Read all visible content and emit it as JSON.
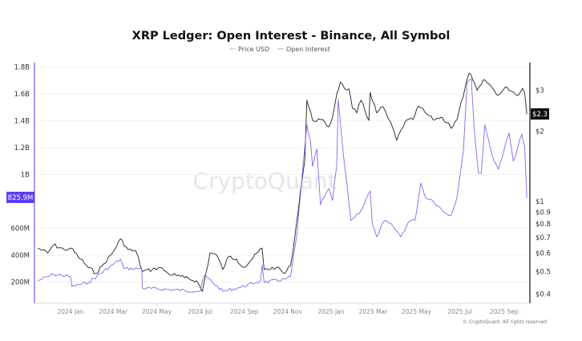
{
  "chart_data": {
    "type": "line",
    "title": "XRP Ledger: Open Interest - Binance, All Symbol",
    "watermark": "CryptoQuant",
    "footer": "© CryptoQuant. All rights reserved",
    "legend_placement": "top-center",
    "grid": true,
    "colors": {
      "price": "#222222",
      "open_interest": "#7b6cf0",
      "oi_label_bg": "#5b3ef5",
      "price_label_bg": "#111111"
    },
    "x_ticks": [
      "2024 Jan",
      "2024 Mar",
      "2024 May",
      "2024 Jul",
      "2024 Sep",
      "2024 Nov",
      "2025 Jan",
      "2025 Mar",
      "2025 May",
      "2025 Jul",
      "2025 Sep"
    ],
    "left_axis": {
      "ticks": [
        "200M",
        "400M",
        "600M",
        "1B",
        "1.2B",
        "1.4B",
        "1.6B",
        "1.8B"
      ],
      "tick_values": [
        200,
        400,
        600,
        1000,
        1200,
        1400,
        1600,
        1800
      ],
      "unit": "M",
      "current_label": "825.9M"
    },
    "right_axis": {
      "scale": "log",
      "ticks": [
        "$0.4",
        "$0.5",
        "$0.6",
        "$0.7",
        "$0.8",
        "$0.9",
        "$1",
        "$2",
        "$3"
      ],
      "tick_values": [
        0.4,
        0.5,
        0.6,
        0.7,
        0.8,
        0.9,
        1,
        2,
        3
      ],
      "current_label": "$2.3"
    },
    "series": [
      {
        "name": "Price USD",
        "axis": "right",
        "points": [
          [
            "2023-11-16",
            0.63
          ],
          [
            "2023-11-30",
            0.6
          ],
          [
            "2023-12-08",
            0.65
          ],
          [
            "2023-12-23",
            0.62
          ],
          [
            "2024-01-01",
            0.63
          ],
          [
            "2024-01-15",
            0.565
          ],
          [
            "2024-01-26",
            0.52
          ],
          [
            "2024-02-06",
            0.49
          ],
          [
            "2024-02-17",
            0.54
          ],
          [
            "2024-02-29",
            0.6
          ],
          [
            "2024-03-11",
            0.69
          ],
          [
            "2024-03-22",
            0.62
          ],
          [
            "2024-04-02",
            0.61
          ],
          [
            "2024-04-11",
            0.5
          ],
          [
            "2024-04-25",
            0.51
          ],
          [
            "2024-05-06",
            0.52
          ],
          [
            "2024-05-17",
            0.49
          ],
          [
            "2024-05-29",
            0.48
          ],
          [
            "2024-06-09",
            0.47
          ],
          [
            "2024-06-26",
            0.456
          ],
          [
            "2024-07-04",
            0.41
          ],
          [
            "2024-07-15",
            0.6
          ],
          [
            "2024-07-24",
            0.59
          ],
          [
            "2024-08-02",
            0.51
          ],
          [
            "2024-08-10",
            0.58
          ],
          [
            "2024-08-21",
            0.565
          ],
          [
            "2024-09-01",
            0.52
          ],
          [
            "2024-09-13",
            0.57
          ],
          [
            "2024-09-26",
            0.63
          ],
          [
            "2024-09-29",
            0.51
          ],
          [
            "2024-10-16",
            0.52
          ],
          [
            "2024-10-28",
            0.49
          ],
          [
            "2024-11-05",
            0.53
          ],
          [
            "2024-11-11",
            0.7
          ],
          [
            "2024-11-19",
            1.11
          ],
          [
            "2024-11-25",
            1.5
          ],
          [
            "2024-11-28",
            2.72
          ],
          [
            "2024-12-06",
            2.23
          ],
          [
            "2024-12-17",
            2.25
          ],
          [
            "2024-12-29",
            2.09
          ],
          [
            "2025-01-03",
            2.3
          ],
          [
            "2025-01-09",
            2.9
          ],
          [
            "2025-01-14",
            3.26
          ],
          [
            "2025-01-20",
            3.05
          ],
          [
            "2025-01-26",
            3.05
          ],
          [
            "2025-01-31",
            2.51
          ],
          [
            "2025-02-06",
            2.4
          ],
          [
            "2025-02-12",
            2.72
          ],
          [
            "2025-02-23",
            2.23
          ],
          [
            "2025-02-25",
            2.94
          ],
          [
            "2025-03-06",
            2.4
          ],
          [
            "2025-03-15",
            2.55
          ],
          [
            "2025-03-23",
            2.25
          ],
          [
            "2025-03-31",
            1.98
          ],
          [
            "2025-04-03",
            1.83
          ],
          [
            "2025-04-15",
            2.2
          ],
          [
            "2025-04-26",
            2.25
          ],
          [
            "2025-05-04",
            2.57
          ],
          [
            "2025-05-13",
            2.41
          ],
          [
            "2025-05-24",
            2.25
          ],
          [
            "2025-06-04",
            2.3
          ],
          [
            "2025-06-15",
            2.17
          ],
          [
            "2025-06-19",
            2.06
          ],
          [
            "2025-06-27",
            2.25
          ],
          [
            "2025-07-08",
            3.06
          ],
          [
            "2025-07-14",
            3.56
          ],
          [
            "2025-07-19",
            3.33
          ],
          [
            "2025-07-25",
            3.0
          ],
          [
            "2025-07-31",
            3.18
          ],
          [
            "2025-08-05",
            3.33
          ],
          [
            "2025-08-16",
            3.06
          ],
          [
            "2025-08-24",
            2.86
          ],
          [
            "2025-09-05",
            3.1
          ],
          [
            "2025-09-14",
            2.95
          ],
          [
            "2025-09-19",
            2.85
          ],
          [
            "2025-09-27",
            3.06
          ],
          [
            "2025-09-30",
            2.92
          ],
          [
            "2025-10-03",
            2.37
          ]
        ]
      },
      {
        "name": "Open Interest",
        "axis": "left",
        "points": [
          [
            "2023-11-16",
            209
          ],
          [
            "2023-12-08",
            257
          ],
          [
            "2024-01-01",
            240
          ],
          [
            "2024-01-03",
            167
          ],
          [
            "2024-01-26",
            197
          ],
          [
            "2024-03-11",
            370
          ],
          [
            "2024-03-16",
            300
          ],
          [
            "2024-04-10",
            300
          ],
          [
            "2024-04-11",
            155
          ],
          [
            "2024-07-01",
            131
          ],
          [
            "2024-07-07",
            250
          ],
          [
            "2024-08-02",
            131
          ],
          [
            "2024-08-27",
            161
          ],
          [
            "2024-09-24",
            209
          ],
          [
            "2024-09-26",
            328
          ],
          [
            "2024-09-29",
            197
          ],
          [
            "2024-10-28",
            221
          ],
          [
            "2024-11-05",
            240
          ],
          [
            "2024-11-14",
            555
          ],
          [
            "2024-11-28",
            1370
          ],
          [
            "2024-12-03",
            1250
          ],
          [
            "2024-12-06",
            1060
          ],
          [
            "2024-12-12",
            1190
          ],
          [
            "2024-12-17",
            776
          ],
          [
            "2024-12-29",
            895
          ],
          [
            "2025-01-03",
            806
          ],
          [
            "2025-01-09",
            1070
          ],
          [
            "2025-01-11",
            1560
          ],
          [
            "2025-01-18",
            1160
          ],
          [
            "2025-01-29",
            657
          ],
          [
            "2025-02-12",
            734
          ],
          [
            "2025-02-25",
            878
          ],
          [
            "2025-02-28",
            627
          ],
          [
            "2025-03-06",
            537
          ],
          [
            "2025-03-17",
            657
          ],
          [
            "2025-03-29",
            615
          ],
          [
            "2025-04-09",
            537
          ],
          [
            "2025-04-20",
            650
          ],
          [
            "2025-04-29",
            660
          ],
          [
            "2025-05-07",
            937
          ],
          [
            "2025-05-13",
            836
          ],
          [
            "2025-05-24",
            806
          ],
          [
            "2025-06-10",
            716
          ],
          [
            "2025-06-19",
            698
          ],
          [
            "2025-06-27",
            836
          ],
          [
            "2025-07-06",
            1190
          ],
          [
            "2025-07-11",
            1680
          ],
          [
            "2025-07-17",
            1710
          ],
          [
            "2025-07-21",
            1340
          ],
          [
            "2025-07-27",
            1010
          ],
          [
            "2025-07-31",
            1010
          ],
          [
            "2025-08-05",
            1370
          ],
          [
            "2025-08-16",
            1130
          ],
          [
            "2025-08-24",
            1040
          ],
          [
            "2025-09-08",
            1310
          ],
          [
            "2025-09-14",
            1100
          ],
          [
            "2025-09-26",
            1300
          ],
          [
            "2025-09-30",
            1200
          ],
          [
            "2025-10-03",
            825.9
          ]
        ]
      }
    ]
  }
}
